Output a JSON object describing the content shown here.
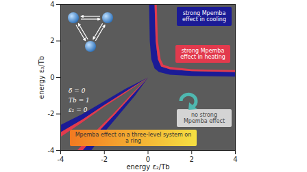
{
  "chart_data": {
    "type": "region",
    "xlabel": "energy ε₂/Tb",
    "ylabel": "energy ε₃/Tb",
    "xlim": [
      -4,
      4
    ],
    "ylim": [
      -4,
      4
    ],
    "xticks": [
      -4,
      -2,
      0,
      2,
      4
    ],
    "yticks": [
      -4,
      -2,
      0,
      2,
      4
    ],
    "regions": [
      {
        "name": "strong Mpemba effect in cooling",
        "color": "#1b1b96",
        "polygons": [
          [
            [
              0.05,
              4
            ],
            [
              0.08,
              2
            ],
            [
              0.15,
              1
            ],
            [
              0.3,
              0.5
            ],
            [
              0.5,
              0.3
            ],
            [
              1,
              0.15
            ],
            [
              2,
              0.08
            ],
            [
              4,
              0.05
            ],
            [
              4,
              0.3
            ],
            [
              2,
              0.35
            ],
            [
              1,
              0.45
            ],
            [
              0.6,
              0.6
            ],
            [
              0.45,
              1
            ],
            [
              0.35,
              2
            ],
            [
              0.3,
              4
            ]
          ],
          [
            [
              0,
              0
            ],
            [
              -1,
              -0.6
            ],
            [
              -2,
              -1.3
            ],
            [
              -3,
              -2
            ],
            [
              -4,
              -2.6
            ],
            [
              -4,
              -3
            ],
            [
              -3,
              -2.3
            ],
            [
              -2,
              -1.5
            ],
            [
              -1,
              -0.75
            ]
          ],
          [
            [
              0,
              0
            ],
            [
              -0.6,
              -1
            ],
            [
              -1.3,
              -2
            ],
            [
              -2,
              -3
            ],
            [
              -2.6,
              -4
            ],
            [
              -3,
              -4
            ],
            [
              -2.3,
              -3
            ],
            [
              -1.5,
              -2
            ],
            [
              -0.75,
              -1
            ]
          ]
        ]
      },
      {
        "name": "strong Mpemba effect in heating",
        "color": "#e23a4d",
        "polygons": [
          [
            [
              0.3,
              4
            ],
            [
              0.35,
              2
            ],
            [
              0.45,
              1
            ],
            [
              0.6,
              0.6
            ],
            [
              1,
              0.45
            ],
            [
              2,
              0.35
            ],
            [
              4,
              0.3
            ],
            [
              4,
              0.4
            ],
            [
              2,
              0.45
            ],
            [
              1,
              0.58
            ],
            [
              0.7,
              0.7
            ],
            [
              0.58,
              1
            ],
            [
              0.45,
              2
            ],
            [
              0.4,
              4
            ]
          ],
          [
            [
              0,
              0
            ],
            [
              -1,
              -0.75
            ],
            [
              -2,
              -1.5
            ],
            [
              -3,
              -2.3
            ],
            [
              -4,
              -3
            ],
            [
              -4,
              -3.25
            ],
            [
              -3,
              -2.45
            ],
            [
              -2,
              -1.6
            ],
            [
              -1,
              -0.82
            ]
          ],
          [
            [
              0,
              0
            ],
            [
              -0.75,
              -1
            ],
            [
              -1.5,
              -2
            ],
            [
              -2.3,
              -3
            ],
            [
              -3,
              -4
            ],
            [
              -3.25,
              -4
            ],
            [
              -2.45,
              -3
            ],
            [
              -1.6,
              -2
            ],
            [
              -0.82,
              -1
            ]
          ]
        ]
      }
    ],
    "annotations": [
      "no strong Mpemba effect",
      "Mpemba effect on a three-level system on a ring"
    ],
    "parameters": [
      "δ = 0",
      "Tb = 1",
      "ε₁ = 0"
    ]
  }
}
